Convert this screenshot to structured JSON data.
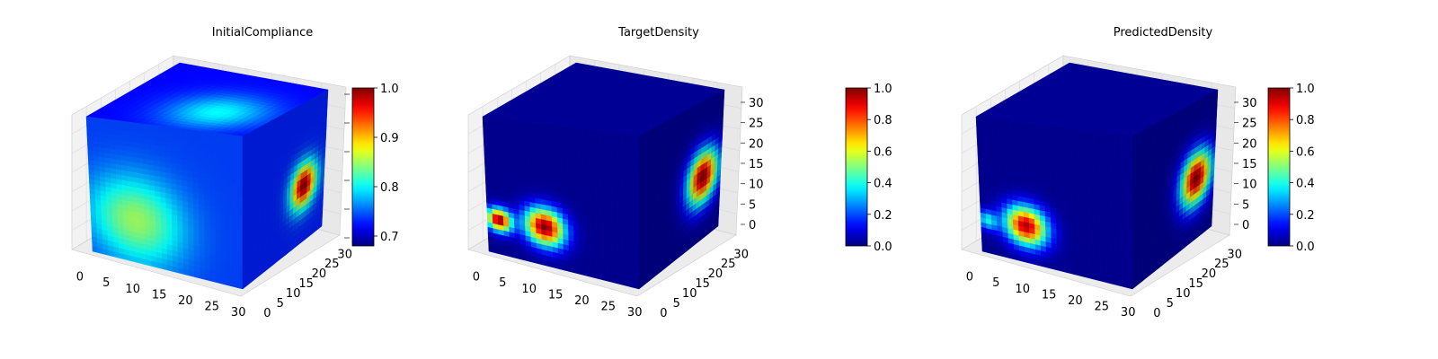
{
  "figure": {
    "background": "#ffffff",
    "pane_color": "#f2f2f2",
    "grid_color": "#d9d9d9",
    "colormap": "jet"
  },
  "chart_data": [
    {
      "type": "heatmap",
      "subtype": "3d-voxel-cube",
      "title": "InitialCompliance",
      "x_ticks": [
        "0",
        "5",
        "10",
        "15",
        "20",
        "25",
        "30"
      ],
      "y_ticks": [
        "0",
        "5",
        "10",
        "15",
        "20",
        "25",
        "30"
      ],
      "z_ticks": [],
      "xlim": [
        0,
        32
      ],
      "ylim": [
        0,
        32
      ],
      "zlim": [
        0,
        32
      ],
      "colorbar": {
        "vmin": 0.68,
        "vmax": 1.0,
        "ticks": [
          0.7,
          0.8,
          0.9,
          1.0
        ],
        "tick_labels": [
          "0.7",
          "0.8",
          "0.9",
          "1.0"
        ]
      },
      "faces": {
        "top": {
          "base": 0.72,
          "blobs": [
            {
              "u": 0.65,
              "v": 0.35,
              "r": 0.45,
              "v_val": 0.8
            }
          ]
        },
        "front": {
          "base": 0.74,
          "blobs": [
            {
              "u": 0.3,
              "v": 0.7,
              "r": 0.45,
              "v_val": 0.85
            }
          ]
        },
        "side": {
          "base": 0.73,
          "blobs": [
            {
              "u": 0.75,
              "v": 0.6,
              "r": 0.22,
              "v_val": 1.0
            }
          ]
        }
      }
    },
    {
      "type": "heatmap",
      "subtype": "3d-voxel-cube",
      "title": "TargetDensity",
      "x_ticks": [
        "0",
        "5",
        "10",
        "15",
        "20",
        "25",
        "30"
      ],
      "y_ticks": [
        "0",
        "5",
        "10",
        "15",
        "20",
        "25",
        "30"
      ],
      "z_ticks": [
        "0",
        "5",
        "10",
        "15",
        "20",
        "25",
        "30"
      ],
      "xlim": [
        0,
        32
      ],
      "ylim": [
        0,
        32
      ],
      "zlim": [
        0,
        32
      ],
      "colorbar": {
        "vmin": 0.0,
        "vmax": 1.0,
        "ticks": [
          0.0,
          0.2,
          0.4,
          0.6,
          0.8,
          1.0
        ],
        "tick_labels": [
          "0.0",
          "0.2",
          "0.4",
          "0.6",
          "0.8",
          "1.0"
        ]
      },
      "faces": {
        "top": {
          "base": 0.02,
          "blobs": []
        },
        "front": {
          "base": 0.02,
          "blobs": [
            {
              "u": 0.38,
              "v": 0.73,
              "r": 0.19,
              "v_val": 1.0
            },
            {
              "u": 0.08,
              "v": 0.75,
              "r": 0.12,
              "v_val": 1.0
            }
          ]
        },
        "side": {
          "base": 0.02,
          "blobs": [
            {
              "u": 0.78,
              "v": 0.55,
              "r": 0.27,
              "v_val": 1.0
            }
          ]
        }
      }
    },
    {
      "type": "heatmap",
      "subtype": "3d-voxel-cube",
      "title": "PredictedDensity",
      "x_ticks": [
        "0",
        "5",
        "10",
        "15",
        "20",
        "25",
        "30"
      ],
      "y_ticks": [
        "0",
        "5",
        "10",
        "15",
        "20",
        "25",
        "30"
      ],
      "z_ticks": [
        "0",
        "5",
        "10",
        "15",
        "20",
        "25",
        "30"
      ],
      "xlim": [
        0,
        32
      ],
      "ylim": [
        0,
        32
      ],
      "zlim": [
        0,
        32
      ],
      "colorbar": {
        "vmin": 0.0,
        "vmax": 1.0,
        "ticks": [
          0.0,
          0.2,
          0.4,
          0.6,
          0.8,
          1.0
        ],
        "tick_labels": [
          "0.0",
          "0.2",
          "0.4",
          "0.6",
          "0.8",
          "1.0"
        ]
      },
      "faces": {
        "top": {
          "base": 0.02,
          "blobs": []
        },
        "front": {
          "base": 0.02,
          "blobs": [
            {
              "u": 0.3,
              "v": 0.74,
              "r": 0.2,
              "v_val": 0.95
            },
            {
              "u": 0.05,
              "v": 0.76,
              "r": 0.1,
              "v_val": 0.4
            }
          ]
        },
        "side": {
          "base": 0.02,
          "blobs": [
            {
              "u": 0.78,
              "v": 0.56,
              "r": 0.27,
              "v_val": 1.0
            }
          ]
        }
      }
    }
  ]
}
